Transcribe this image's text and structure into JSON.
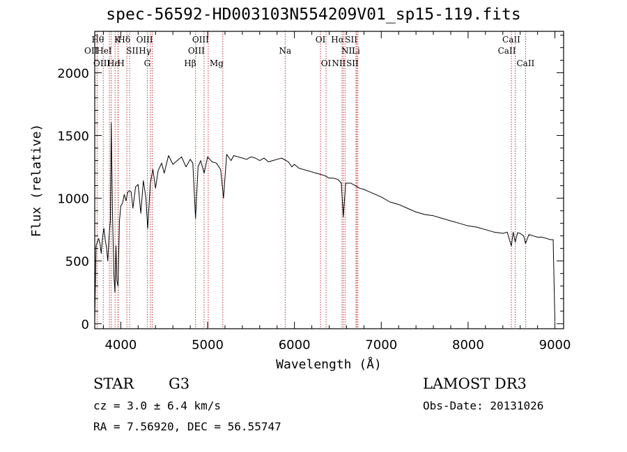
{
  "chart_data": {
    "type": "line",
    "title": "spec-56592-HD003103N554209V01_sp15-119.fits",
    "xlabel": "Wavelength (Å)",
    "ylabel": "Flux (relative)",
    "xlim": [
      3700,
      9100
    ],
    "ylim": [
      -40,
      2330
    ],
    "xticks": [
      4000,
      5000,
      6000,
      7000,
      8000,
      9000
    ],
    "yticks": [
      0,
      500,
      1000,
      1500,
      2000
    ],
    "series": [
      {
        "name": "flux",
        "x": [
          3700,
          3715,
          3730,
          3745,
          3760,
          3775,
          3790,
          3805,
          3820,
          3835,
          3850,
          3865,
          3880,
          3890,
          3905,
          3920,
          3933,
          3945,
          3955,
          3968,
          3985,
          4000,
          4020,
          4040,
          4060,
          4080,
          4100,
          4120,
          4140,
          4170,
          4200,
          4230,
          4260,
          4290,
          4310,
          4340,
          4370,
          4400,
          4430,
          4470,
          4500,
          4550,
          4600,
          4650,
          4700,
          4750,
          4800,
          4830,
          4861,
          4890,
          4920,
          4960,
          5000,
          5050,
          5100,
          5150,
          5183,
          5220,
          5270,
          5300,
          5350,
          5400,
          5450,
          5500,
          5550,
          5600,
          5650,
          5700,
          5750,
          5800,
          5850,
          5893,
          5930,
          5970,
          6000,
          6050,
          6100,
          6150,
          6200,
          6250,
          6300,
          6350,
          6400,
          6450,
          6500,
          6540,
          6563,
          6590,
          6620,
          6650,
          6700,
          6750,
          6800,
          6850,
          6900,
          7000,
          7100,
          7200,
          7300,
          7400,
          7500,
          7600,
          7700,
          7800,
          7900,
          8000,
          8100,
          8200,
          8300,
          8400,
          8450,
          8498,
          8520,
          8542,
          8570,
          8600,
          8640,
          8662,
          8700,
          8750,
          8800,
          8850,
          8900,
          8950,
          8980,
          9000
        ],
        "y": [
          30,
          620,
          650,
          680,
          640,
          560,
          690,
          760,
          670,
          610,
          500,
          700,
          820,
          1600,
          870,
          400,
          250,
          620,
          340,
          300,
          820,
          940,
          960,
          1030,
          980,
          1050,
          1060,
          1050,
          920,
          1090,
          1110,
          880,
          1140,
          1000,
          760,
          1120,
          1230,
          1080,
          1220,
          1280,
          1200,
          1340,
          1270,
          1300,
          1330,
          1250,
          1310,
          1280,
          840,
          1250,
          1300,
          1200,
          1330,
          1290,
          1280,
          1230,
          1000,
          1350,
          1300,
          1340,
          1330,
          1320,
          1310,
          1330,
          1320,
          1300,
          1320,
          1290,
          1300,
          1310,
          1320,
          1305,
          1290,
          1250,
          1270,
          1240,
          1230,
          1220,
          1210,
          1200,
          1190,
          1180,
          1160,
          1160,
          1150,
          1120,
          850,
          1120,
          1120,
          1120,
          1100,
          1080,
          1070,
          1055,
          1040,
          1010,
          970,
          950,
          920,
          890,
          870,
          860,
          840,
          820,
          800,
          780,
          770,
          750,
          730,
          720,
          730,
          620,
          730,
          650,
          725,
          720,
          700,
          640,
          710,
          700,
          690,
          690,
          680,
          670,
          670,
          20
        ]
      }
    ],
    "line_markers": [
      {
        "label": "Hθ",
        "x": 3798,
        "row": 1,
        "side": "left"
      },
      {
        "label": "OII",
        "x": 3727,
        "row": 2,
        "side": "left"
      },
      {
        "label": "OIII",
        "x": 3869,
        "row": 3,
        "side": "left"
      },
      {
        "label": "K",
        "x": 3934,
        "row": 1,
        "side": "right"
      },
      {
        "label": "HeI",
        "x": 3889,
        "row": 2,
        "side": "left"
      },
      {
        "label": "Hε",
        "x": 3970,
        "row": 3,
        "side": "left"
      },
      {
        "label": "H",
        "x": 3968,
        "row": 3,
        "side": "right"
      },
      {
        "label": "SII",
        "x": 4070,
        "row": 2,
        "side": "right"
      },
      {
        "label": "Hδ",
        "x": 4102,
        "row": 1,
        "side": "left"
      },
      {
        "label": "OIII",
        "x": 4363,
        "row": 1,
        "side": "left"
      },
      {
        "label": "Hγ",
        "x": 4341,
        "row": 2,
        "side": "left"
      },
      {
        "label": "G",
        "x": 4305,
        "row": 3,
        "side": "center"
      },
      {
        "label": "Hβ",
        "x": 4861,
        "row": 3,
        "side": "left"
      },
      {
        "label": "OIII",
        "x": 4959,
        "row": 2,
        "side": "left"
      },
      {
        "label": "OIII",
        "x": 5007,
        "row": 1,
        "side": "left"
      },
      {
        "label": "Mg",
        "x": 5175,
        "row": 3,
        "side": "left"
      },
      {
        "label": "Na",
        "x": 5893,
        "row": 2,
        "side": "center"
      },
      {
        "label": "OI",
        "x": 6300,
        "row": 1,
        "side": "center"
      },
      {
        "label": "OI",
        "x": 6364,
        "row": 3,
        "side": "center"
      },
      {
        "label": "Hα",
        "x": 6563,
        "row": 1,
        "side": "left"
      },
      {
        "label": "NII",
        "x": 6548,
        "row": 2,
        "side": "right"
      },
      {
        "label": "NII",
        "x": 6583,
        "row": 3,
        "side": "left"
      },
      {
        "label": "SII",
        "x": 6717,
        "row": 1,
        "side": "left"
      },
      {
        "label": "Li",
        "x": 6708,
        "row": 2,
        "side": "center"
      },
      {
        "label": "SII",
        "x": 6731,
        "row": 3,
        "side": "left"
      },
      {
        "label": "CaII",
        "x": 8498,
        "row": 1,
        "side": "center"
      },
      {
        "label": "CaII",
        "x": 8542,
        "row": 2,
        "side": "left"
      },
      {
        "label": "CaII",
        "x": 8662,
        "row": 3,
        "side": "center"
      }
    ]
  },
  "footer": {
    "object_class": "STAR",
    "subclass": "G3",
    "survey": "LAMOST DR3",
    "redshift": "cz = 3.0 ± 6.4 km/s",
    "obs_date": "Obs-Date: 20131026",
    "coords": "RA =   7.56920, DEC =  56.55747"
  }
}
